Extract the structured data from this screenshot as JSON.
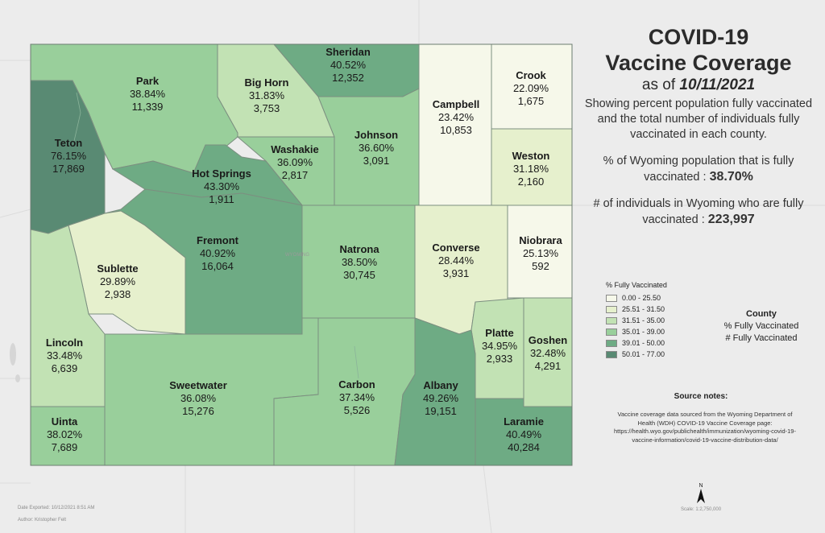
{
  "title_line1": "COVID-19",
  "title_line2": "Vaccine Coverage",
  "as_of_prefix": "as of",
  "as_of_date": "10/11/2021",
  "description": "Showing percent population fully vaccinated and the total number of individuals fully vaccinated in each county.",
  "state_pct_label": "% of Wyoming population that is fully vaccinated :",
  "state_pct_value": "38.70%",
  "state_count_label": "# of individuals in Wyoming who are fully vaccinated :",
  "state_count_value": "223,997",
  "legend": {
    "title": "% Fully Vaccinated",
    "classes": [
      {
        "label": "0.00 - 25.50",
        "color": "#f6f8ea"
      },
      {
        "label": "25.51 - 31.50",
        "color": "#e6f0cd"
      },
      {
        "label": "31.51 - 35.00",
        "color": "#c2e2b4"
      },
      {
        "label": "35.01 - 39.00",
        "color": "#99cf9b"
      },
      {
        "label": "39.01 - 50.00",
        "color": "#6eab84"
      },
      {
        "label": "50.01 - 77.00",
        "color": "#598a73"
      }
    ]
  },
  "county_key": {
    "title": "County",
    "line1": "% Fully Vaccinated",
    "line2": "# Fully Vaccinated"
  },
  "source_title": "Source notes:",
  "source_text": "Vaccine coverage data sourced from the Wyoming Department of Health (WDH) COVID-19 Vaccine Coverage page: https://health.wyo.gov/publichealth/immunization/wyoming-covid-19-vaccine-information/covid-19-vaccine-distribution-data/",
  "north_label": "N",
  "date_exported": "Date Exported: 10/12/2021 8:51 AM",
  "author": "Author: Kristopher Felt",
  "scale": "Scale: 1:2,750,000",
  "map_watermark": "WYOMING",
  "counties": [
    {
      "name": "Park",
      "pct": "38.84%",
      "count": "11,339",
      "cls": 3
    },
    {
      "name": "Big Horn",
      "pct": "31.83%",
      "count": "3,753",
      "cls": 2
    },
    {
      "name": "Sheridan",
      "pct": "40.52%",
      "count": "12,352",
      "cls": 4
    },
    {
      "name": "Campbell",
      "pct": "23.42%",
      "count": "10,853",
      "cls": 0
    },
    {
      "name": "Crook",
      "pct": "22.09%",
      "count": "1,675",
      "cls": 0
    },
    {
      "name": "Weston",
      "pct": "31.18%",
      "count": "2,160",
      "cls": 1
    },
    {
      "name": "Teton",
      "pct": "76.15%",
      "count": "17,869",
      "cls": 5
    },
    {
      "name": "Washakie",
      "pct": "36.09%",
      "count": "2,817",
      "cls": 3
    },
    {
      "name": "Johnson",
      "pct": "36.60%",
      "count": "3,091",
      "cls": 3
    },
    {
      "name": "Hot Springs",
      "pct": "43.30%",
      "count": "1,911",
      "cls": 4
    },
    {
      "name": "Fremont",
      "pct": "40.92%",
      "count": "16,064",
      "cls": 4
    },
    {
      "name": "Natrona",
      "pct": "38.50%",
      "count": "30,745",
      "cls": 3
    },
    {
      "name": "Converse",
      "pct": "28.44%",
      "count": "3,931",
      "cls": 1
    },
    {
      "name": "Niobrara",
      "pct": "25.13%",
      "count": "592",
      "cls": 0
    },
    {
      "name": "Sublette",
      "pct": "29.89%",
      "count": "2,938",
      "cls": 1
    },
    {
      "name": "Lincoln",
      "pct": "33.48%",
      "count": "6,639",
      "cls": 2
    },
    {
      "name": "Platte",
      "pct": "34.95%",
      "count": "2,933",
      "cls": 2
    },
    {
      "name": "Goshen",
      "pct": "32.48%",
      "count": "4,291",
      "cls": 2
    },
    {
      "name": "Sweetwater",
      "pct": "36.08%",
      "count": "15,276",
      "cls": 3
    },
    {
      "name": "Carbon",
      "pct": "37.34%",
      "count": "5,526",
      "cls": 3
    },
    {
      "name": "Albany",
      "pct": "49.26%",
      "count": "19,151",
      "cls": 4
    },
    {
      "name": "Uinta",
      "pct": "38.02%",
      "count": "7,689",
      "cls": 3
    },
    {
      "name": "Laramie",
      "pct": "40.49%",
      "count": "40,284",
      "cls": 4
    }
  ]
}
